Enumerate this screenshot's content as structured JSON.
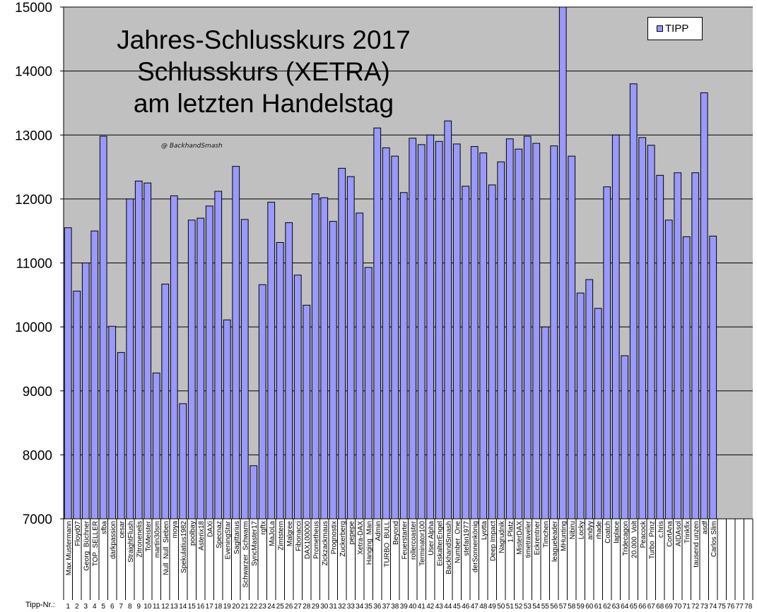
{
  "chart_data": {
    "type": "bar",
    "title_lines": [
      "Jahres-Schlusskurs 2017",
      "Schlusskurs (XETRA)",
      "am letzten Handelstag"
    ],
    "watermark": "@ BackhandSmash",
    "series": [
      {
        "name": "TIPP",
        "color": "#9999ff"
      }
    ],
    "ylim": [
      7000,
      15000
    ],
    "yticks": [
      7000,
      8000,
      9000,
      10000,
      11000,
      12000,
      13000,
      14000,
      15000
    ],
    "grid": true,
    "legend_position": "top-right",
    "x_prefix_label": "Tipp-Nr.:",
    "numbers": [
      "1",
      "2",
      "3",
      "4",
      "5",
      "6",
      "7",
      "8",
      "9",
      "10",
      "11",
      "12",
      "13",
      "14",
      "15",
      "16",
      "17",
      "18",
      "19",
      "20",
      "21",
      "22",
      "23",
      "24",
      "25",
      "26",
      "27",
      "28",
      "29",
      "30",
      "31",
      "32",
      "33",
      "34",
      "35",
      "36",
      "37",
      "38",
      "39",
      "40",
      "41",
      "42",
      "43",
      "44",
      "45",
      "46",
      "47",
      "48",
      "49",
      "50",
      "51",
      "52",
      "53",
      "54",
      "55",
      "56",
      "57",
      "58",
      "59",
      "60",
      "61",
      "62",
      "63",
      "64",
      "65",
      "66",
      "67",
      "68",
      "69",
      "70",
      "71",
      "72",
      "73",
      "74",
      "75",
      "76",
      "77",
      "78"
    ],
    "categories": [
      "Max Mustermann",
      "Floyd07",
      "Georg_Büchner",
      "TOP_SELLER",
      "sfba",
      "darkpassion",
      "cesar",
      "StraightFlush",
      "Zitronenelis",
      "ToMeister",
      "martin30sm",
      "Null_Null_Sieben",
      "moya",
      "Spekulatius1982",
      "poolbay",
      "Asterix18",
      "DAXi",
      "Specnaz",
      "EveningStar",
      "Sagittarius",
      "Schwarzer_Schwarm",
      "SyncMaster17",
      "rgftx",
      "MaJoLa",
      "Zimtstern",
      "Malgree",
      "Fibonacci",
      "DAX100000",
      "Prometheus",
      "Zickzackmaus",
      "Prognostix",
      "Zuckerberg",
      "pepepe",
      "Xetra-DAX",
      "Hanging_Man",
      "Admin",
      "TURBO_BULL",
      "Beyond",
      "Feuerstarter",
      "rollercoaster",
      "Terminator100",
      "User Alpha",
      "EiskalterEngel",
      "BackhandSmash",
      "Number_One",
      "stefan1977",
      "derSonnenkönig",
      "Lyotta",
      "Deep Impact",
      "Nagrudnik",
      "1.Platz",
      "MisterDAX",
      "timetraveler",
      "Eckrentner",
      "Timchen",
      "leagueleader",
      "MHunting",
      "Nibiru",
      "Locky",
      "andyy",
      "rhade",
      "Coatch",
      "laplace",
      "Tridecagon",
      "20.000_Volt",
      "Peacock",
      "Turbo_Prinz",
      "c.hris",
      "CortAna",
      "AIDAsol",
      "Trinkfix",
      "tausend unzen",
      "asdf",
      "Carlos Slim",
      "",
      "",
      "",
      ""
    ],
    "values": [
      11550,
      10560,
      11000,
      11500,
      12980,
      10010,
      9600,
      12000,
      12280,
      12250,
      9280,
      10670,
      12050,
      8800,
      11670,
      11700,
      11890,
      12120,
      10110,
      12510,
      11680,
      7830,
      10660,
      11950,
      11320,
      11630,
      10810,
      10340,
      12080,
      12020,
      11650,
      12480,
      12350,
      11780,
      10930,
      13110,
      12800,
      12670,
      12100,
      12950,
      12850,
      13000,
      12900,
      13220,
      12860,
      12200,
      12820,
      12720,
      12220,
      12580,
      12940,
      12780,
      12980,
      12870,
      10000,
      12830,
      15000,
      12670,
      10530,
      10740,
      10290,
      12190,
      13000,
      9550,
      13800,
      12960,
      12840,
      12370,
      11670,
      12410,
      11410,
      12410,
      13660,
      11420,
      null,
      null,
      null,
      null
    ]
  }
}
